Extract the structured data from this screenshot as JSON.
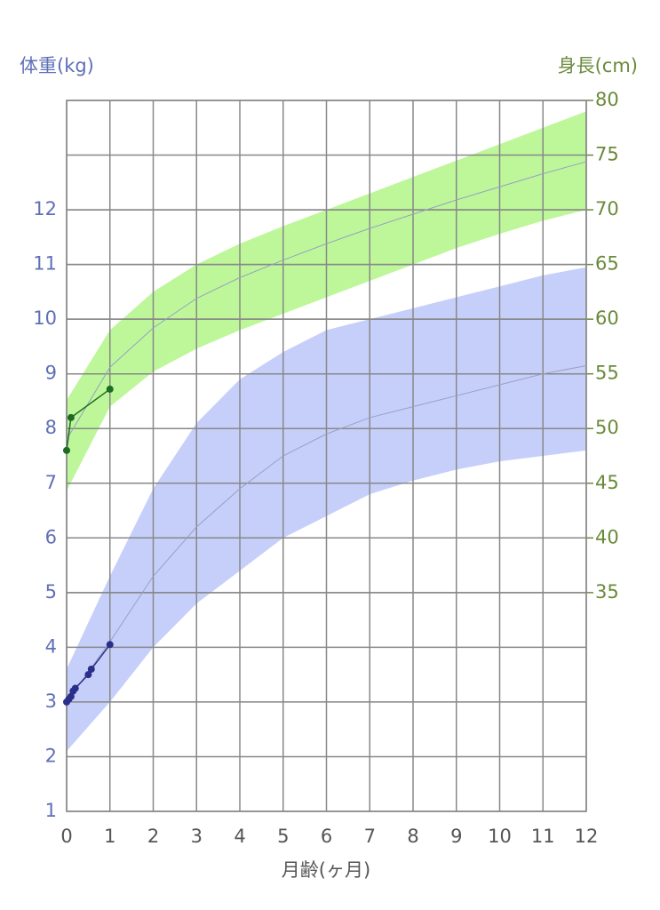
{
  "chart_data": {
    "type": "line",
    "x_label": "月齢(ヶ月)",
    "y_label": "体重(kg)",
    "y2_label": "身長(cm)",
    "xlim": [
      0,
      12
    ],
    "xticks": [
      0,
      1,
      2,
      3,
      4,
      5,
      6,
      7,
      8,
      9,
      10,
      11,
      12
    ],
    "ylim": [
      1,
      14
    ],
    "yticks": [
      1,
      2,
      3,
      4,
      5,
      6,
      7,
      8,
      9,
      10,
      11,
      12
    ],
    "y2lim": [
      15,
      80
    ],
    "y2ticks": [
      35,
      40,
      45,
      50,
      55,
      60,
      65,
      70,
      75,
      80
    ],
    "grid": true,
    "x": [
      0,
      1,
      2,
      3,
      4,
      5,
      6,
      7,
      8,
      9,
      10,
      11,
      12
    ],
    "bands": [
      {
        "color": "#bdf79a",
        "axis": "y2",
        "lower": [
          44.3,
          52,
          55.2,
          57.3,
          59,
          60.5,
          62,
          63.5,
          65,
          66.5,
          67.8,
          69,
          70
        ],
        "upper": [
          52.6,
          59,
          62.5,
          65,
          66.9,
          68.5,
          70,
          71.5,
          73,
          74.5,
          76,
          77.5,
          79
        ]
      },
      {
        "color": "#c5cffa",
        "axis": "y",
        "lower": [
          2.1,
          3.0,
          4.0,
          4.8,
          5.4,
          6.0,
          6.4,
          6.8,
          7.05,
          7.25,
          7.4,
          7.5,
          7.6
        ],
        "upper": [
          3.6,
          5.3,
          6.9,
          8.1,
          8.9,
          9.4,
          9.8,
          10.0,
          10.2,
          10.4,
          10.6,
          10.8,
          10.95
        ]
      }
    ],
    "series": [
      {
        "color": "#9aa0c0",
        "axis": "y2",
        "values": [
          49,
          55.6,
          59.2,
          61.9,
          63.8,
          65.4,
          66.9,
          68.3,
          69.6,
          70.9,
          72.1,
          73.3,
          74.4
        ]
      },
      {
        "color": "#9aa0c0",
        "axis": "y",
        "values": [
          3.0,
          4.1,
          5.3,
          6.2,
          6.9,
          7.5,
          7.9,
          8.2,
          8.4,
          8.6,
          8.8,
          9.0,
          9.15
        ]
      }
    ],
    "records": [
      {
        "color": "#1f6b24",
        "axis": "y2",
        "x": [
          0,
          0.1,
          1
        ],
        "values": [
          48,
          51,
          53.6
        ]
      },
      {
        "color": "#2a2f8a",
        "axis": "y",
        "x": [
          0,
          0.05,
          0.1,
          0.15,
          0.2,
          0.5,
          0.57,
          1
        ],
        "values": [
          3.0,
          3.05,
          3.1,
          3.2,
          3.25,
          3.5,
          3.6,
          4.05
        ]
      }
    ]
  }
}
